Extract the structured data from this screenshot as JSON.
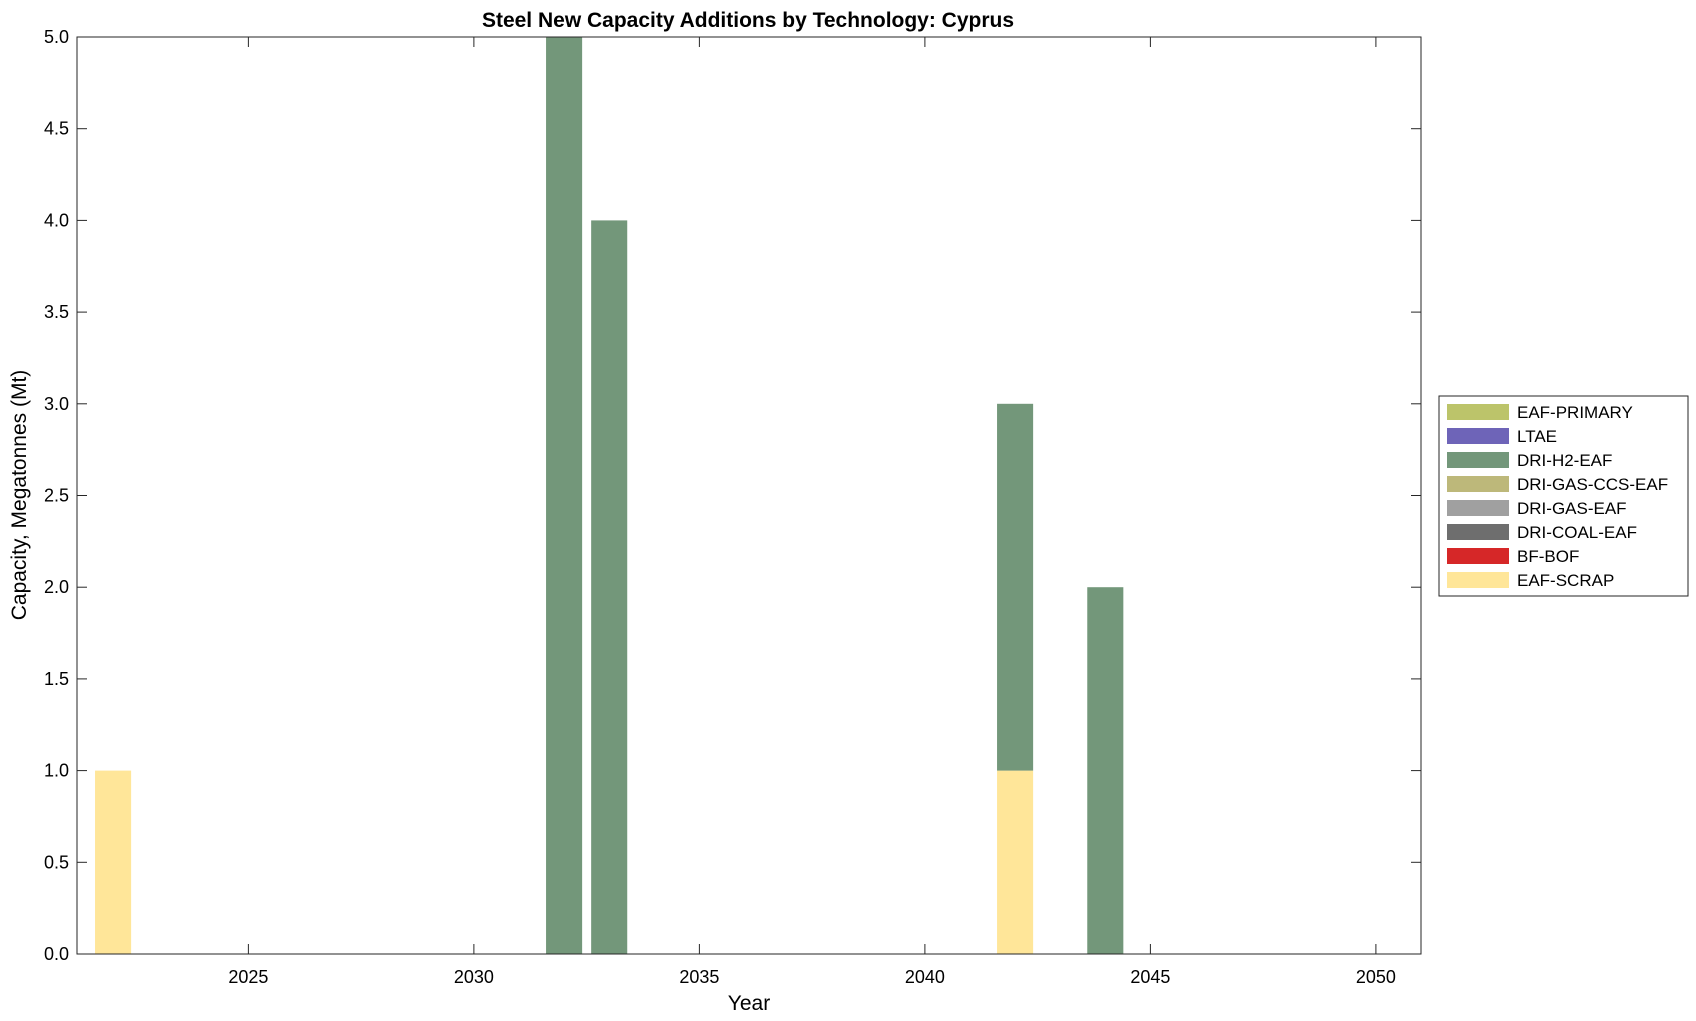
{
  "chart_data": {
    "type": "bar",
    "stacked": true,
    "title": "Steel New Capacity Additions by Technology: Cyprus",
    "xlabel": "Year",
    "ylabel": "Capacity, Megatonnes (Mt)",
    "xlim": [
      2021.2,
      2051
    ],
    "ylim": [
      0,
      5
    ],
    "xticks": [
      2025,
      2030,
      2035,
      2040,
      2045,
      2050
    ],
    "yticks": [
      0.0,
      0.5,
      1.0,
      1.5,
      2.0,
      2.5,
      3.0,
      3.5,
      4.0,
      4.5,
      5.0
    ],
    "ytick_labels": [
      "0.0",
      "0.5",
      "1.0",
      "1.5",
      "2.0",
      "2.5",
      "3.0",
      "3.5",
      "4.0",
      "4.5",
      "5.0"
    ],
    "grid": false,
    "legend_position": "right",
    "categories": [
      2022,
      2032,
      2033,
      2042,
      2044
    ],
    "series": [
      {
        "name": "EAF-SCRAP",
        "color": "#FFE699",
        "values": [
          1,
          0,
          0,
          1,
          0
        ]
      },
      {
        "name": "BF-BOF",
        "color": "#D62728",
        "values": [
          0,
          0,
          0,
          0,
          0
        ]
      },
      {
        "name": "DRI-COAL-EAF",
        "color": "#6E6E6E",
        "values": [
          0,
          0,
          0,
          0,
          0
        ]
      },
      {
        "name": "DRI-GAS-EAF",
        "color": "#A0A0A0",
        "values": [
          0,
          0,
          0,
          0,
          0
        ]
      },
      {
        "name": "DRI-GAS-CCS-EAF",
        "color": "#BDB87A",
        "values": [
          0,
          0,
          0,
          0,
          0
        ]
      },
      {
        "name": "DRI-H2-EAF",
        "color": "#73977A",
        "values": [
          0,
          5,
          4,
          2,
          2
        ]
      },
      {
        "name": "LTAE",
        "color": "#6E64B8",
        "values": [
          0,
          0,
          0,
          0,
          0
        ]
      },
      {
        "name": "EAF-PRIMARY",
        "color": "#BCC46A",
        "values": [
          0,
          0,
          0,
          0,
          0
        ]
      }
    ],
    "legend_order": [
      "EAF-PRIMARY",
      "LTAE",
      "DRI-H2-EAF",
      "DRI-GAS-CCS-EAF",
      "DRI-GAS-EAF",
      "DRI-COAL-EAF",
      "BF-BOF",
      "EAF-SCRAP"
    ]
  }
}
